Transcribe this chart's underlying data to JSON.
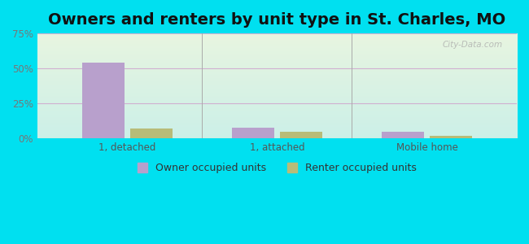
{
  "title": "Owners and renters by unit type in St. Charles, MO",
  "categories": [
    "1, detached",
    "1, attached",
    "Mobile home"
  ],
  "owner_values": [
    54.0,
    7.5,
    4.5
  ],
  "renter_values": [
    7.0,
    4.5,
    2.0
  ],
  "owner_color": "#b8a0cc",
  "renter_color": "#b8bc78",
  "ylim": [
    0,
    75
  ],
  "yticks": [
    0,
    25,
    50,
    75
  ],
  "ytick_labels": [
    "0%",
    "25%",
    "50%",
    "75%"
  ],
  "background_cyan": "#00e0f0",
  "grad_top": "#e8f5e0",
  "grad_bottom": "#ccf0e8",
  "grid_color": "#d0b0d0",
  "bar_width": 0.28,
  "legend_owner": "Owner occupied units",
  "legend_renter": "Renter occupied units",
  "title_fontsize": 14,
  "axis_fontsize": 8.5,
  "legend_fontsize": 9,
  "watermark": "City-Data.com"
}
